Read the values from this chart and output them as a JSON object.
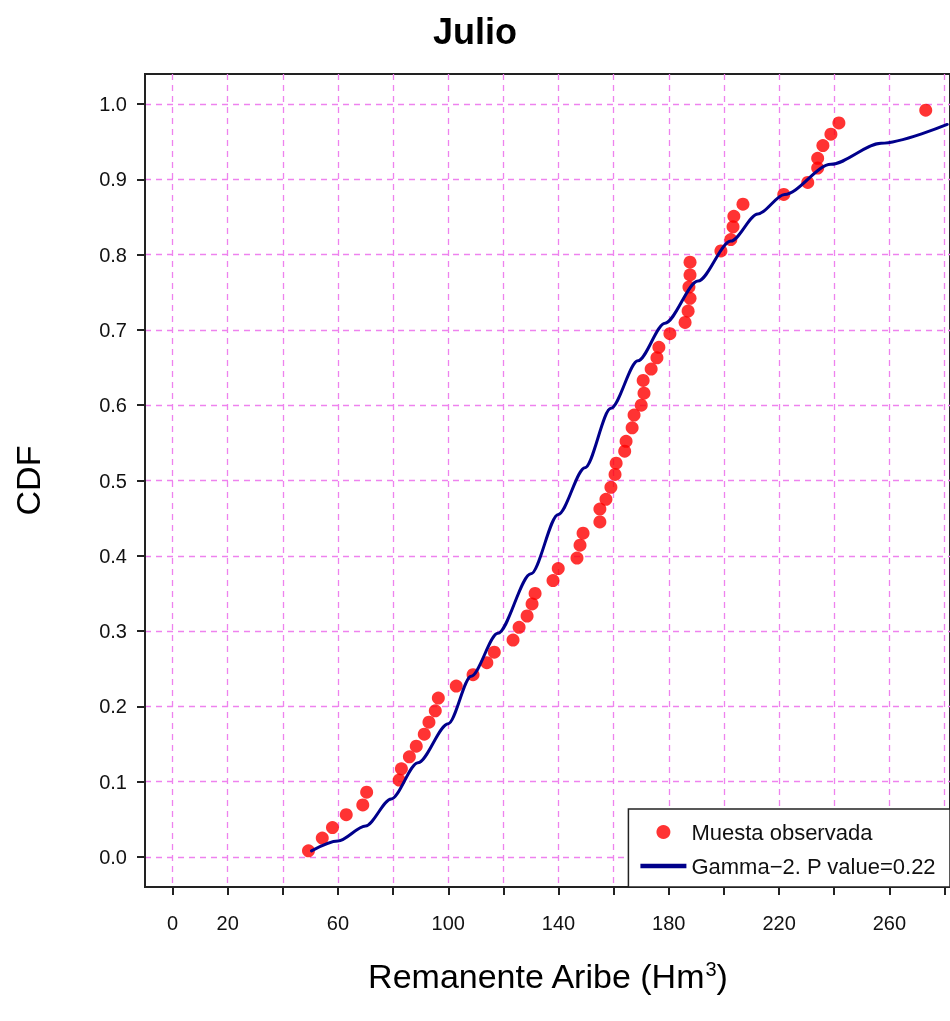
{
  "chart_data": {
    "type": "scatter",
    "title": "Julio",
    "xlabel": "Remanente Aribe (Hm$^{3}$)",
    "ylabel": "CDF",
    "xlim": [
      -10,
      282
    ],
    "ylim": [
      -0.04,
      1.04
    ],
    "xticks": [
      0,
      20,
      {
        "value": 40,
        "label": null
      },
      60,
      {
        "value": 80,
        "label": null
      },
      100,
      {
        "value": 120,
        "label": null
      },
      140,
      {
        "value": 160,
        "label": null
      },
      180,
      {
        "value": 200,
        "label": null
      },
      220,
      {
        "value": 240,
        "label": null
      },
      260,
      {
        "value": 280,
        "label": null
      }
    ],
    "yticks": [
      {
        "value": 0,
        "label": "0.0"
      },
      {
        "value": 0.1,
        "label": "0.1"
      },
      {
        "value": 0.2,
        "label": "0.2"
      },
      {
        "value": 0.3,
        "label": "0.3"
      },
      {
        "value": 0.4,
        "label": "0.4"
      },
      {
        "value": 0.5,
        "label": "0.5"
      },
      {
        "value": 0.6,
        "label": "0.6"
      },
      {
        "value": 0.7,
        "label": "0.7"
      },
      {
        "value": 0.8,
        "label": "0.8"
      },
      {
        "value": 0.9,
        "label": "0.9"
      },
      {
        "value": 1,
        "label": "1.0"
      }
    ],
    "grid": true,
    "legend": "bottom right",
    "marker": "circle",
    "series": [
      {
        "name": "Muesta observada",
        "color": "#ff0000",
        "x": [
          49.3,
          54.3,
          58,
          63,
          69,
          70.4,
          82.2,
          83,
          85.9,
          88.4,
          91.3,
          93,
          95.3,
          96.4,
          102.9,
          109,
          114,
          116.7,
          123.5,
          125.7,
          128.6,
          130.4,
          131.5,
          138,
          139.9,
          146.7,
          147.8,
          148.9,
          155,
          155,
          157.2,
          159,
          160.5,
          160.9,
          164,
          164.5,
          166.7,
          167.4,
          170,
          171,
          170.7,
          173.6,
          175.7,
          176.4,
          180.4,
          185.9,
          187,
          187.7,
          187.3,
          187.7,
          187.7,
          198.9,
          202.5,
          203.3,
          203.6,
          206.9,
          221.7,
          230.4,
          234,
          234,
          235.9,
          238.8,
          241.7,
          273.2
        ],
        "values": [
          0.008,
          0.025,
          0.039,
          0.056,
          0.069,
          0.086,
          0.102,
          0.117,
          0.133,
          0.147,
          0.163,
          0.179,
          0.194,
          0.211,
          0.227,
          0.242,
          0.258,
          0.272,
          0.288,
          0.305,
          0.32,
          0.336,
          0.35,
          0.367,
          0.383,
          0.397,
          0.414,
          0.43,
          0.445,
          0.462,
          0.475,
          0.491,
          0.508,
          0.523,
          0.539,
          0.552,
          0.57,
          0.587,
          0.6,
          0.616,
          0.633,
          0.648,
          0.663,
          0.677,
          0.695,
          0.71,
          0.725,
          0.742,
          0.757,
          0.773,
          0.79,
          0.805,
          0.82,
          0.837,
          0.851,
          0.867,
          0.88,
          0.896,
          0.915,
          0.928,
          0.945,
          0.96,
          0.975,
          0.992
        ]
      },
      {
        "name": "Gamma−2. P value=0.22",
        "type": "line",
        "color": "#00008b",
        "marker": "none",
        "line_style": "solid",
        "x": [
          50.4,
          60,
          70,
          79.3,
          89,
          100,
          108.3,
          118,
          130,
          139.9,
          149.6,
          159,
          168.8,
          178.6,
          190.6,
          202.5,
          212.3,
          222,
          238.8,
          257,
          281
        ],
        "values": [
          0.008,
          0.021,
          0.041,
          0.077,
          0.125,
          0.177,
          0.24,
          0.297,
          0.376,
          0.455,
          0.517,
          0.596,
          0.659,
          0.709,
          0.765,
          0.818,
          0.854,
          0.88,
          0.92,
          0.948,
          0.973
        ]
      }
    ]
  }
}
